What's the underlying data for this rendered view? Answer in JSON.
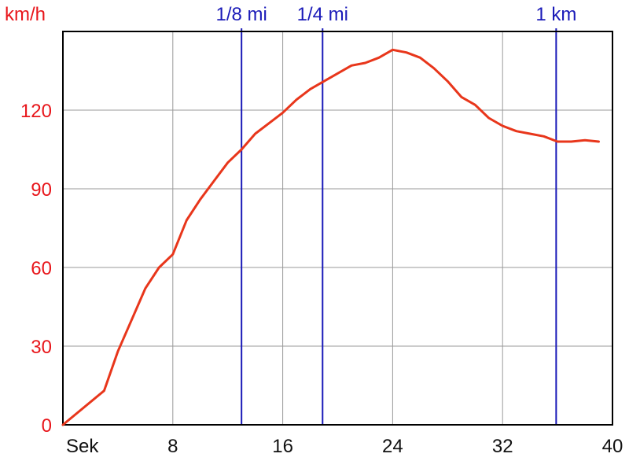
{
  "chart_data": {
    "type": "line",
    "title": "",
    "ylabel": "km/h",
    "xlabel": "Sek",
    "xlim": [
      0,
      40
    ],
    "ylim": [
      0,
      150
    ],
    "x_ticks": [
      8,
      16,
      24,
      32,
      40
    ],
    "y_ticks": [
      0,
      30,
      60,
      90,
      120
    ],
    "grid": true,
    "colors": {
      "line": "#e8361b",
      "markers": "#1a1ab8",
      "grid": "#999999",
      "axis": "#000000",
      "y_tick_text": "#e8161b"
    },
    "markers": [
      {
        "label": "1/8 mi",
        "x": 13.0
      },
      {
        "label": "1/4 mi",
        "x": 18.9
      },
      {
        "label": "1 km",
        "x": 35.9
      }
    ],
    "series": [
      {
        "x": [
          0,
          3,
          4,
          5,
          6,
          7,
          8,
          9,
          10,
          11,
          12,
          13,
          14,
          15,
          16,
          17,
          18,
          19,
          20,
          21,
          22,
          23,
          24,
          25,
          26,
          27,
          28,
          29,
          30,
          31,
          32,
          33,
          34,
          35,
          36,
          37,
          38,
          39
        ],
        "y": [
          0,
          13,
          28,
          40,
          52,
          60,
          65,
          78,
          86,
          93,
          100,
          105,
          111,
          115,
          119,
          124,
          128,
          131,
          134,
          137,
          138,
          140,
          143,
          142,
          140,
          136,
          131,
          125,
          122,
          117,
          114,
          112,
          111,
          110,
          108,
          108,
          108.5,
          108
        ]
      }
    ]
  }
}
